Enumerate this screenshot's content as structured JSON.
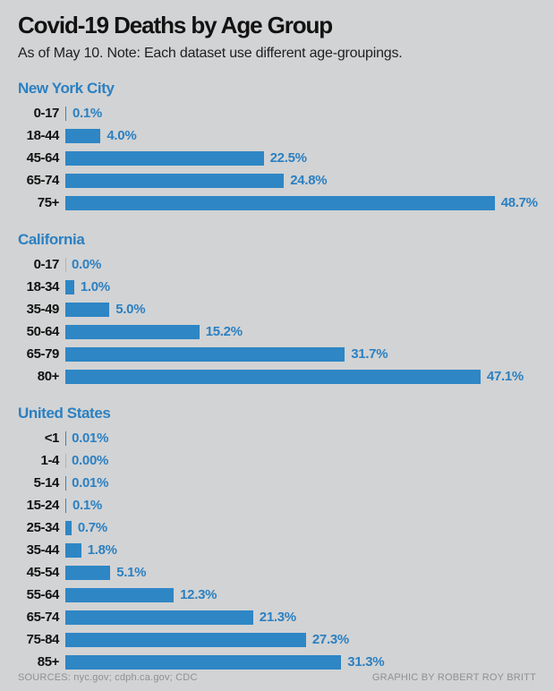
{
  "header": {
    "title": "Covid-19 Deaths by Age Group",
    "subtitle": "As of May 10. Note: Each dataset use different age-groupings."
  },
  "chart_data": [
    {
      "type": "bar",
      "orientation": "horizontal",
      "title": "New York City",
      "categories": [
        "0-17",
        "18-44",
        "45-64",
        "65-74",
        "75+"
      ],
      "values": [
        0.1,
        4.0,
        22.5,
        24.8,
        48.7
      ],
      "value_labels": [
        "0.1%",
        "4.0%",
        "22.5%",
        "24.8%",
        "48.7%"
      ],
      "xlim": [
        0,
        50
      ],
      "grid": false,
      "legend": "none"
    },
    {
      "type": "bar",
      "orientation": "horizontal",
      "title": "California",
      "categories": [
        "0-17",
        "18-34",
        "35-49",
        "50-64",
        "65-79",
        "80+"
      ],
      "values": [
        0.0,
        1.0,
        5.0,
        15.2,
        31.7,
        47.1
      ],
      "value_labels": [
        "0.0%",
        "1.0%",
        "5.0%",
        "15.2%",
        "31.7%",
        "47.1%"
      ],
      "xlim": [
        0,
        50
      ],
      "grid": false,
      "legend": "none"
    },
    {
      "type": "bar",
      "orientation": "horizontal",
      "title": "United States",
      "categories": [
        "<1",
        "1-4",
        "5-14",
        "15-24",
        "25-34",
        "35-44",
        "45-54",
        "55-64",
        "65-74",
        "75-84",
        "85+"
      ],
      "values": [
        0.01,
        0.0,
        0.01,
        0.1,
        0.7,
        1.8,
        5.1,
        12.3,
        21.3,
        27.3,
        31.3
      ],
      "value_labels": [
        "0.01%",
        "0.00%",
        "0.01%",
        "0.1%",
        "0.7%",
        "1.8%",
        "5.1%",
        "12.3%",
        "21.3%",
        "27.3%",
        "31.3%"
      ],
      "xlim": [
        0,
        50
      ],
      "grid": false,
      "legend": "none"
    }
  ],
  "footer": {
    "sources": "SOURCES: nyc.gov; cdph.ca.gov; CDC",
    "credit": "GRAPHIC BY ROBERT ROY BRITT"
  },
  "colors": {
    "background": "#d2d3d4",
    "bar": "#2e86c5",
    "accent_text": "#2b80c2",
    "title_text": "#121212",
    "axis_tick": "#a9b6bf",
    "footer_text": "#8d9093"
  }
}
